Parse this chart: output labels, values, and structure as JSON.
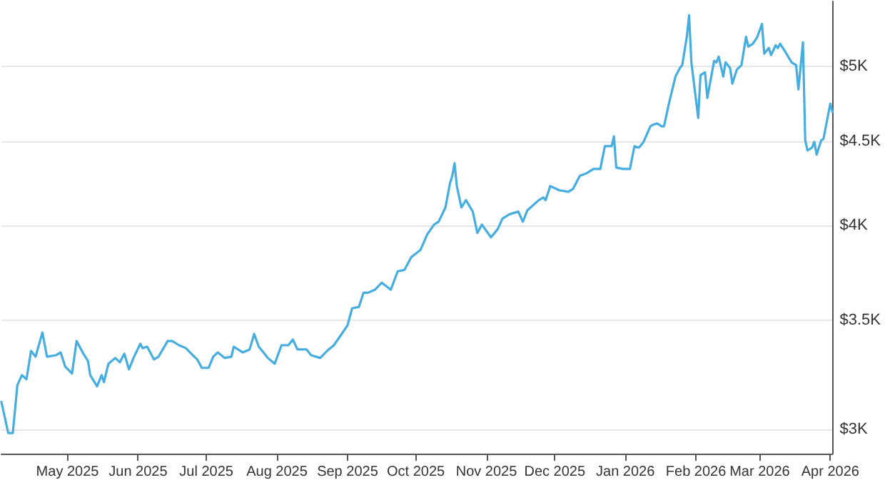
{
  "chart_data": {
    "type": "line",
    "x": [
      "2025-04-02",
      "2025-04-05",
      "2025-04-07",
      "2025-04-09",
      "2025-04-11",
      "2025-04-13",
      "2025-04-15",
      "2025-04-17",
      "2025-04-20",
      "2025-04-22",
      "2025-04-26",
      "2025-04-28",
      "2025-04-30",
      "2025-05-03",
      "2025-05-05",
      "2025-05-08",
      "2025-05-10",
      "2025-05-11",
      "2025-05-14",
      "2025-05-16",
      "2025-05-17",
      "2025-05-19",
      "2025-05-22",
      "2025-05-24",
      "2025-05-26",
      "2025-05-28",
      "2025-05-30",
      "2025-06-02",
      "2025-06-03",
      "2025-06-05",
      "2025-06-08",
      "2025-06-10",
      "2025-06-14",
      "2025-06-16",
      "2025-06-19",
      "2025-06-22",
      "2025-06-25",
      "2025-06-27",
      "2025-06-29",
      "2025-07-02",
      "2025-07-04",
      "2025-07-06",
      "2025-07-09",
      "2025-07-12",
      "2025-07-13",
      "2025-07-17",
      "2025-07-20",
      "2025-07-22",
      "2025-07-24",
      "2025-07-28",
      "2025-07-31",
      "2025-08-03",
      "2025-08-06",
      "2025-08-08",
      "2025-08-10",
      "2025-08-14",
      "2025-08-16",
      "2025-08-20",
      "2025-08-23",
      "2025-08-26",
      "2025-08-29",
      "2025-09-01",
      "2025-09-03",
      "2025-09-06",
      "2025-09-08",
      "2025-09-10",
      "2025-09-13",
      "2025-09-16",
      "2025-09-20",
      "2025-09-23",
      "2025-09-26",
      "2025-09-29",
      "2025-10-03",
      "2025-10-06",
      "2025-10-09",
      "2025-10-11",
      "2025-10-14",
      "2025-10-16",
      "2025-10-17",
      "2025-10-18",
      "2025-10-19",
      "2025-10-21",
      "2025-10-23",
      "2025-10-26",
      "2025-10-28",
      "2025-10-30",
      "2025-11-03",
      "2025-11-06",
      "2025-11-08",
      "2025-11-11",
      "2025-11-15",
      "2025-11-17",
      "2025-11-19",
      "2025-11-24",
      "2025-11-26",
      "2025-11-27",
      "2025-11-29",
      "2025-12-03",
      "2025-12-07",
      "2025-12-09",
      "2025-12-12",
      "2025-12-15",
      "2025-12-18",
      "2025-12-21",
      "2025-12-23",
      "2025-12-26",
      "2025-12-27",
      "2025-12-28",
      "2025-12-31",
      "2026-01-03",
      "2026-01-05",
      "2026-01-07",
      "2026-01-09",
      "2026-01-12",
      "2026-01-13",
      "2026-01-15",
      "2026-01-17",
      "2026-01-18",
      "2026-01-20",
      "2026-01-23",
      "2026-01-25",
      "2026-01-26",
      "2026-01-28",
      "2026-01-29",
      "2026-01-30",
      "2026-02-02",
      "2026-02-03",
      "2026-02-05",
      "2026-02-06",
      "2026-02-09",
      "2026-02-10",
      "2026-02-11",
      "2026-02-13",
      "2026-02-14",
      "2026-02-16",
      "2026-02-17",
      "2026-02-19",
      "2026-02-21",
      "2026-02-23",
      "2026-02-24",
      "2026-02-26",
      "2026-02-28",
      "2026-03-02",
      "2026-03-03",
      "2026-03-05",
      "2026-03-06",
      "2026-03-08",
      "2026-03-09",
      "2026-03-10",
      "2026-03-12",
      "2026-03-15",
      "2026-03-17",
      "2026-03-18",
      "2026-03-20",
      "2026-03-21",
      "2026-03-22",
      "2026-03-24",
      "2026-03-25",
      "2026-03-26",
      "2026-03-28",
      "2026-03-29",
      "2026-04-01",
      "2026-04-02"
    ],
    "series": [
      {
        "color": "#45ade0",
        "values": [
          3119,
          2985,
          2985,
          3194,
          3239,
          3220,
          3351,
          3324,
          3439,
          3324,
          3331,
          3344,
          3278,
          3246,
          3398,
          3338,
          3304,
          3239,
          3188,
          3239,
          3207,
          3291,
          3318,
          3298,
          3338,
          3265,
          3318,
          3385,
          3364,
          3371,
          3311,
          3324,
          3398,
          3398,
          3378,
          3364,
          3331,
          3311,
          3272,
          3272,
          3324,
          3344,
          3318,
          3324,
          3371,
          3344,
          3358,
          3432,
          3371,
          3318,
          3291,
          3378,
          3378,
          3405,
          3358,
          3358,
          3331,
          3318,
          3351,
          3378,
          3425,
          3474,
          3558,
          3565,
          3637,
          3637,
          3652,
          3689,
          3652,
          3748,
          3756,
          3824,
          3862,
          3948,
          4003,
          4019,
          4101,
          4243,
          4287,
          4364,
          4226,
          4101,
          4143,
          4077,
          3956,
          4003,
          3932,
          3979,
          4036,
          4061,
          4077,
          4019,
          4085,
          4143,
          4159,
          4143,
          4226,
          4201,
          4192,
          4209,
          4287,
          4303,
          4329,
          4329,
          4470,
          4470,
          4533,
          4338,
          4329,
          4329,
          4470,
          4461,
          4497,
          4597,
          4606,
          4615,
          4597,
          4597,
          4737,
          4930,
          4990,
          5010,
          5214,
          5374,
          5030,
          4652,
          4940,
          4960,
          4784,
          5040,
          5030,
          5070,
          4930,
          5030,
          4990,
          4881,
          4980,
          5010,
          5214,
          5142,
          5163,
          5214,
          5309,
          5091,
          5132,
          5081,
          5152,
          5132,
          5163,
          5111,
          5030,
          5010,
          4842,
          5173,
          4506,
          4443,
          4461,
          4497,
          4417,
          4506,
          4515,
          4746,
          4690
        ]
      }
    ],
    "xlim": [
      "2025-04-02",
      "2026-04-02"
    ],
    "xticks": [
      {
        "value": "2025-05-01",
        "label": "May 2025"
      },
      {
        "value": "2025-06-01",
        "label": "Jun 2025"
      },
      {
        "value": "2025-07-01",
        "label": "Jul 2025"
      },
      {
        "value": "2025-08-01",
        "label": "Aug 2025"
      },
      {
        "value": "2025-09-01",
        "label": "Sep 2025"
      },
      {
        "value": "2025-10-01",
        "label": "Oct 2025"
      },
      {
        "value": "2025-11-01",
        "label": "Nov 2025"
      },
      {
        "value": "2025-12-01",
        "label": "Dec 2025"
      },
      {
        "value": "2026-01-01",
        "label": "Jan 2026"
      },
      {
        "value": "2026-02-01",
        "label": "Feb 2026"
      },
      {
        "value": "2026-03-01",
        "label": "Mar 2026"
      },
      {
        "value": "2026-04-01",
        "label": "Apr 2026"
      }
    ],
    "ylim": [
      2900,
      5480
    ],
    "yticks": [
      {
        "value": 3000,
        "label": "$3K"
      },
      {
        "value": 3500,
        "label": "$3.5K"
      },
      {
        "value": 4000,
        "label": "$4K"
      },
      {
        "value": 4500,
        "label": "$4.5K"
      },
      {
        "value": 5000,
        "label": "$5K"
      }
    ],
    "log": "y",
    "grid": "y",
    "marker": "none",
    "line_style": "solid"
  }
}
